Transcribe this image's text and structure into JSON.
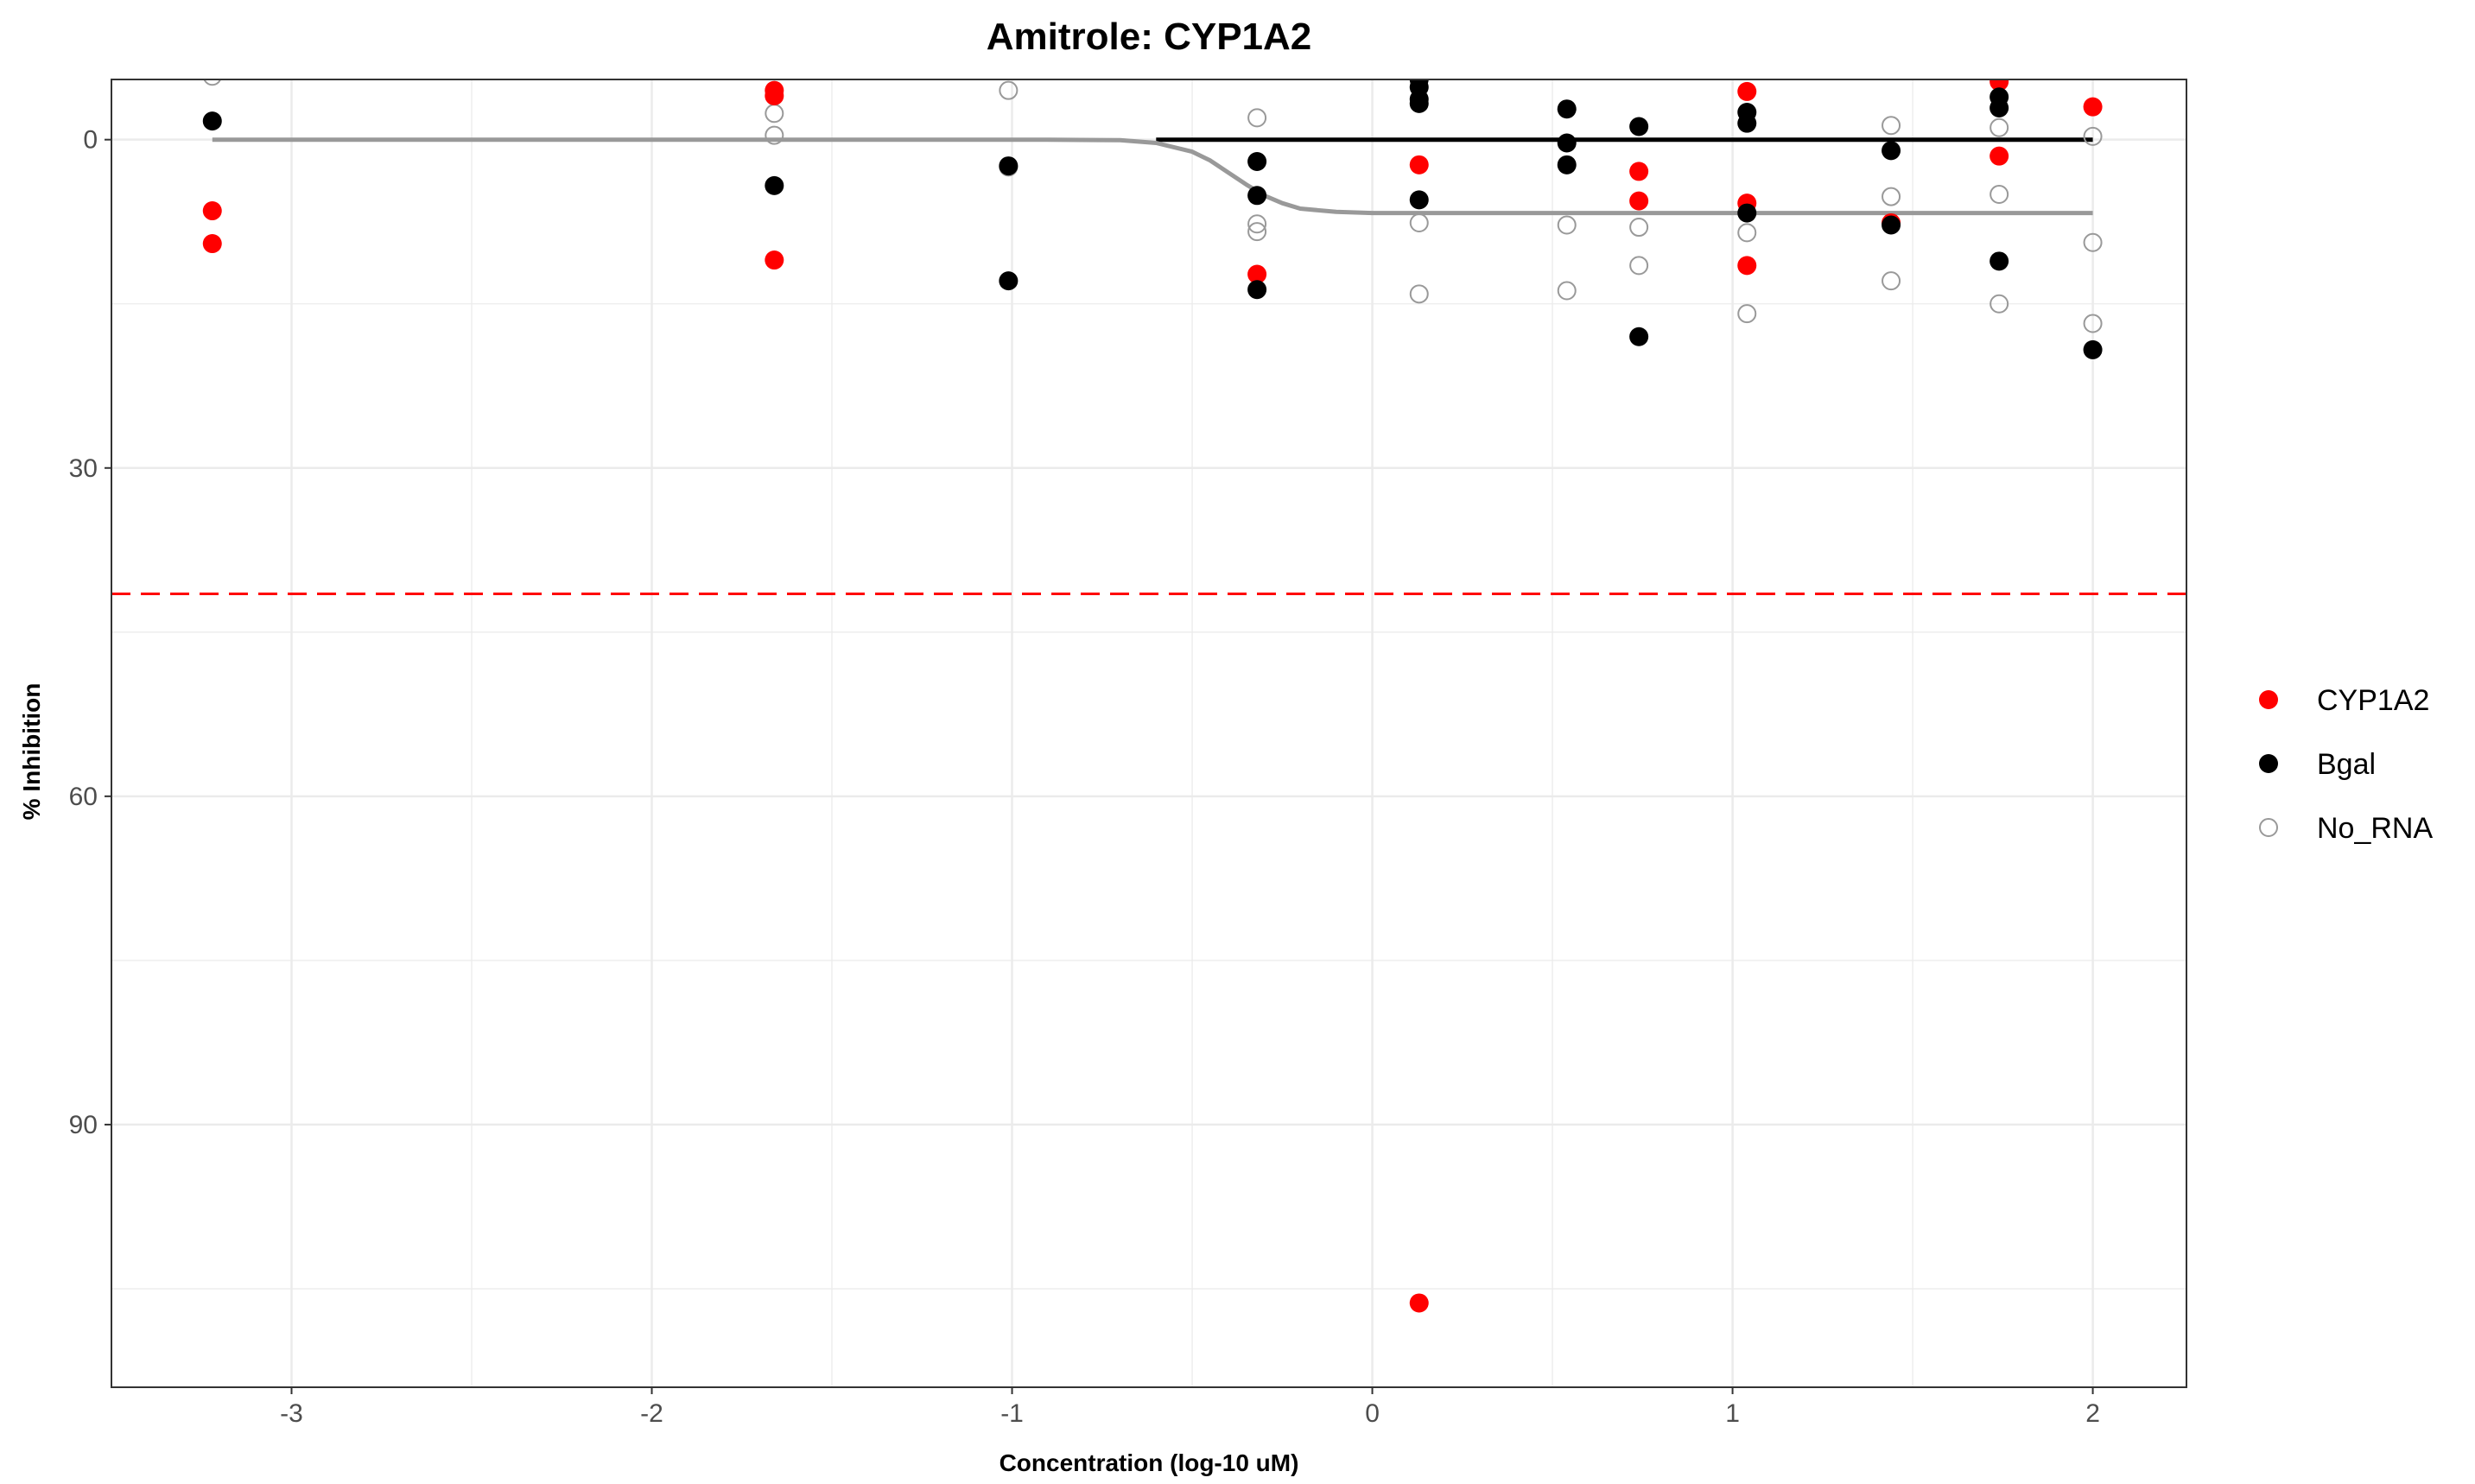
{
  "chart_data": {
    "type": "scatter",
    "title": "Amitrole: CYP1A2",
    "xlabel": "Concentration (log-10 uM)",
    "ylabel": "% Inhibition",
    "xlim": [
      -3.5,
      2.26
    ],
    "ylim": [
      -5.5,
      114
    ],
    "y_reversed": true,
    "x_ticks": [
      -3,
      -2,
      -1,
      0,
      1,
      2
    ],
    "y_ticks": [
      0,
      30,
      60,
      90
    ],
    "grid": true,
    "legend_position": "right",
    "threshold": {
      "y": 41.5,
      "color": "#ff0000",
      "style": "dashed"
    },
    "series": [
      {
        "name": "CYP1A2",
        "color": "#ff0000",
        "marker": "filled-circle",
        "points": [
          [
            -3.22,
            6.5
          ],
          [
            -3.22,
            9.5
          ],
          [
            -1.66,
            -4.5
          ],
          [
            -1.66,
            -4.0
          ],
          [
            -1.66,
            11.0
          ],
          [
            -0.32,
            12.3
          ],
          [
            0.13,
            2.3
          ],
          [
            0.13,
            106.3
          ],
          [
            0.74,
            2.9
          ],
          [
            0.74,
            5.6
          ],
          [
            1.04,
            -4.4
          ],
          [
            1.04,
            5.8
          ],
          [
            1.04,
            11.5
          ],
          [
            1.44,
            7.6
          ],
          [
            1.74,
            -5.3
          ],
          [
            1.74,
            1.5
          ],
          [
            2.0,
            -3.0
          ]
        ]
      },
      {
        "name": "Bgal",
        "color": "#000000",
        "marker": "filled-circle",
        "points": [
          [
            -3.22,
            -1.7
          ],
          [
            -1.66,
            4.2
          ],
          [
            -1.01,
            2.4
          ],
          [
            -1.01,
            12.9
          ],
          [
            -0.32,
            2.0
          ],
          [
            -0.32,
            5.1
          ],
          [
            -0.32,
            13.7
          ],
          [
            0.13,
            -5.5
          ],
          [
            0.13,
            -4.8
          ],
          [
            0.13,
            -3.7
          ],
          [
            0.13,
            -3.3
          ],
          [
            0.13,
            5.5
          ],
          [
            0.54,
            -2.8
          ],
          [
            0.54,
            0.3
          ],
          [
            0.54,
            2.3
          ],
          [
            0.74,
            -1.2
          ],
          [
            0.74,
            18.0
          ],
          [
            1.04,
            -2.5
          ],
          [
            1.04,
            -1.5
          ],
          [
            1.04,
            6.7
          ],
          [
            1.44,
            1.0
          ],
          [
            1.44,
            7.8
          ],
          [
            1.74,
            -3.9
          ],
          [
            1.74,
            -2.9
          ],
          [
            1.74,
            11.1
          ],
          [
            2.0,
            19.2
          ]
        ]
      },
      {
        "name": "No_RNA",
        "color": "#999999",
        "marker": "open-circle",
        "points": [
          [
            -3.22,
            -5.8
          ],
          [
            -1.66,
            -2.4
          ],
          [
            -1.66,
            -0.4
          ],
          [
            -1.01,
            -4.5
          ],
          [
            -1.01,
            2.5
          ],
          [
            -0.32,
            -2.0
          ],
          [
            -0.32,
            7.7
          ],
          [
            -0.32,
            8.4
          ],
          [
            0.13,
            7.6
          ],
          [
            0.13,
            14.1
          ],
          [
            0.54,
            7.8
          ],
          [
            0.54,
            13.8
          ],
          [
            0.74,
            8.0
          ],
          [
            0.74,
            11.5
          ],
          [
            1.04,
            8.5
          ],
          [
            1.04,
            15.9
          ],
          [
            1.44,
            -1.3
          ],
          [
            1.44,
            5.2
          ],
          [
            1.44,
            12.9
          ],
          [
            1.74,
            -1.1
          ],
          [
            1.74,
            5.0
          ],
          [
            1.74,
            15.0
          ],
          [
            2.0,
            -0.3
          ],
          [
            2.0,
            9.4
          ],
          [
            2.0,
            16.8
          ]
        ]
      }
    ],
    "fits": [
      {
        "series": "Bgal",
        "color": "#000000",
        "x": [
          -0.6,
          2.0
        ],
        "y": [
          0.0,
          0.0
        ]
      },
      {
        "series": "No_RNA",
        "color": "#999999",
        "x": [
          -3.22,
          -0.9,
          -0.7,
          -0.6,
          -0.5,
          -0.45,
          -0.4,
          -0.35,
          -0.3,
          -0.25,
          -0.2,
          -0.1,
          0.0,
          0.3,
          2.0
        ],
        "y": [
          0.0,
          0.0,
          0.05,
          0.3,
          1.1,
          1.9,
          3.0,
          4.1,
          5.1,
          5.8,
          6.3,
          6.6,
          6.7,
          6.7,
          6.7
        ]
      }
    ]
  }
}
